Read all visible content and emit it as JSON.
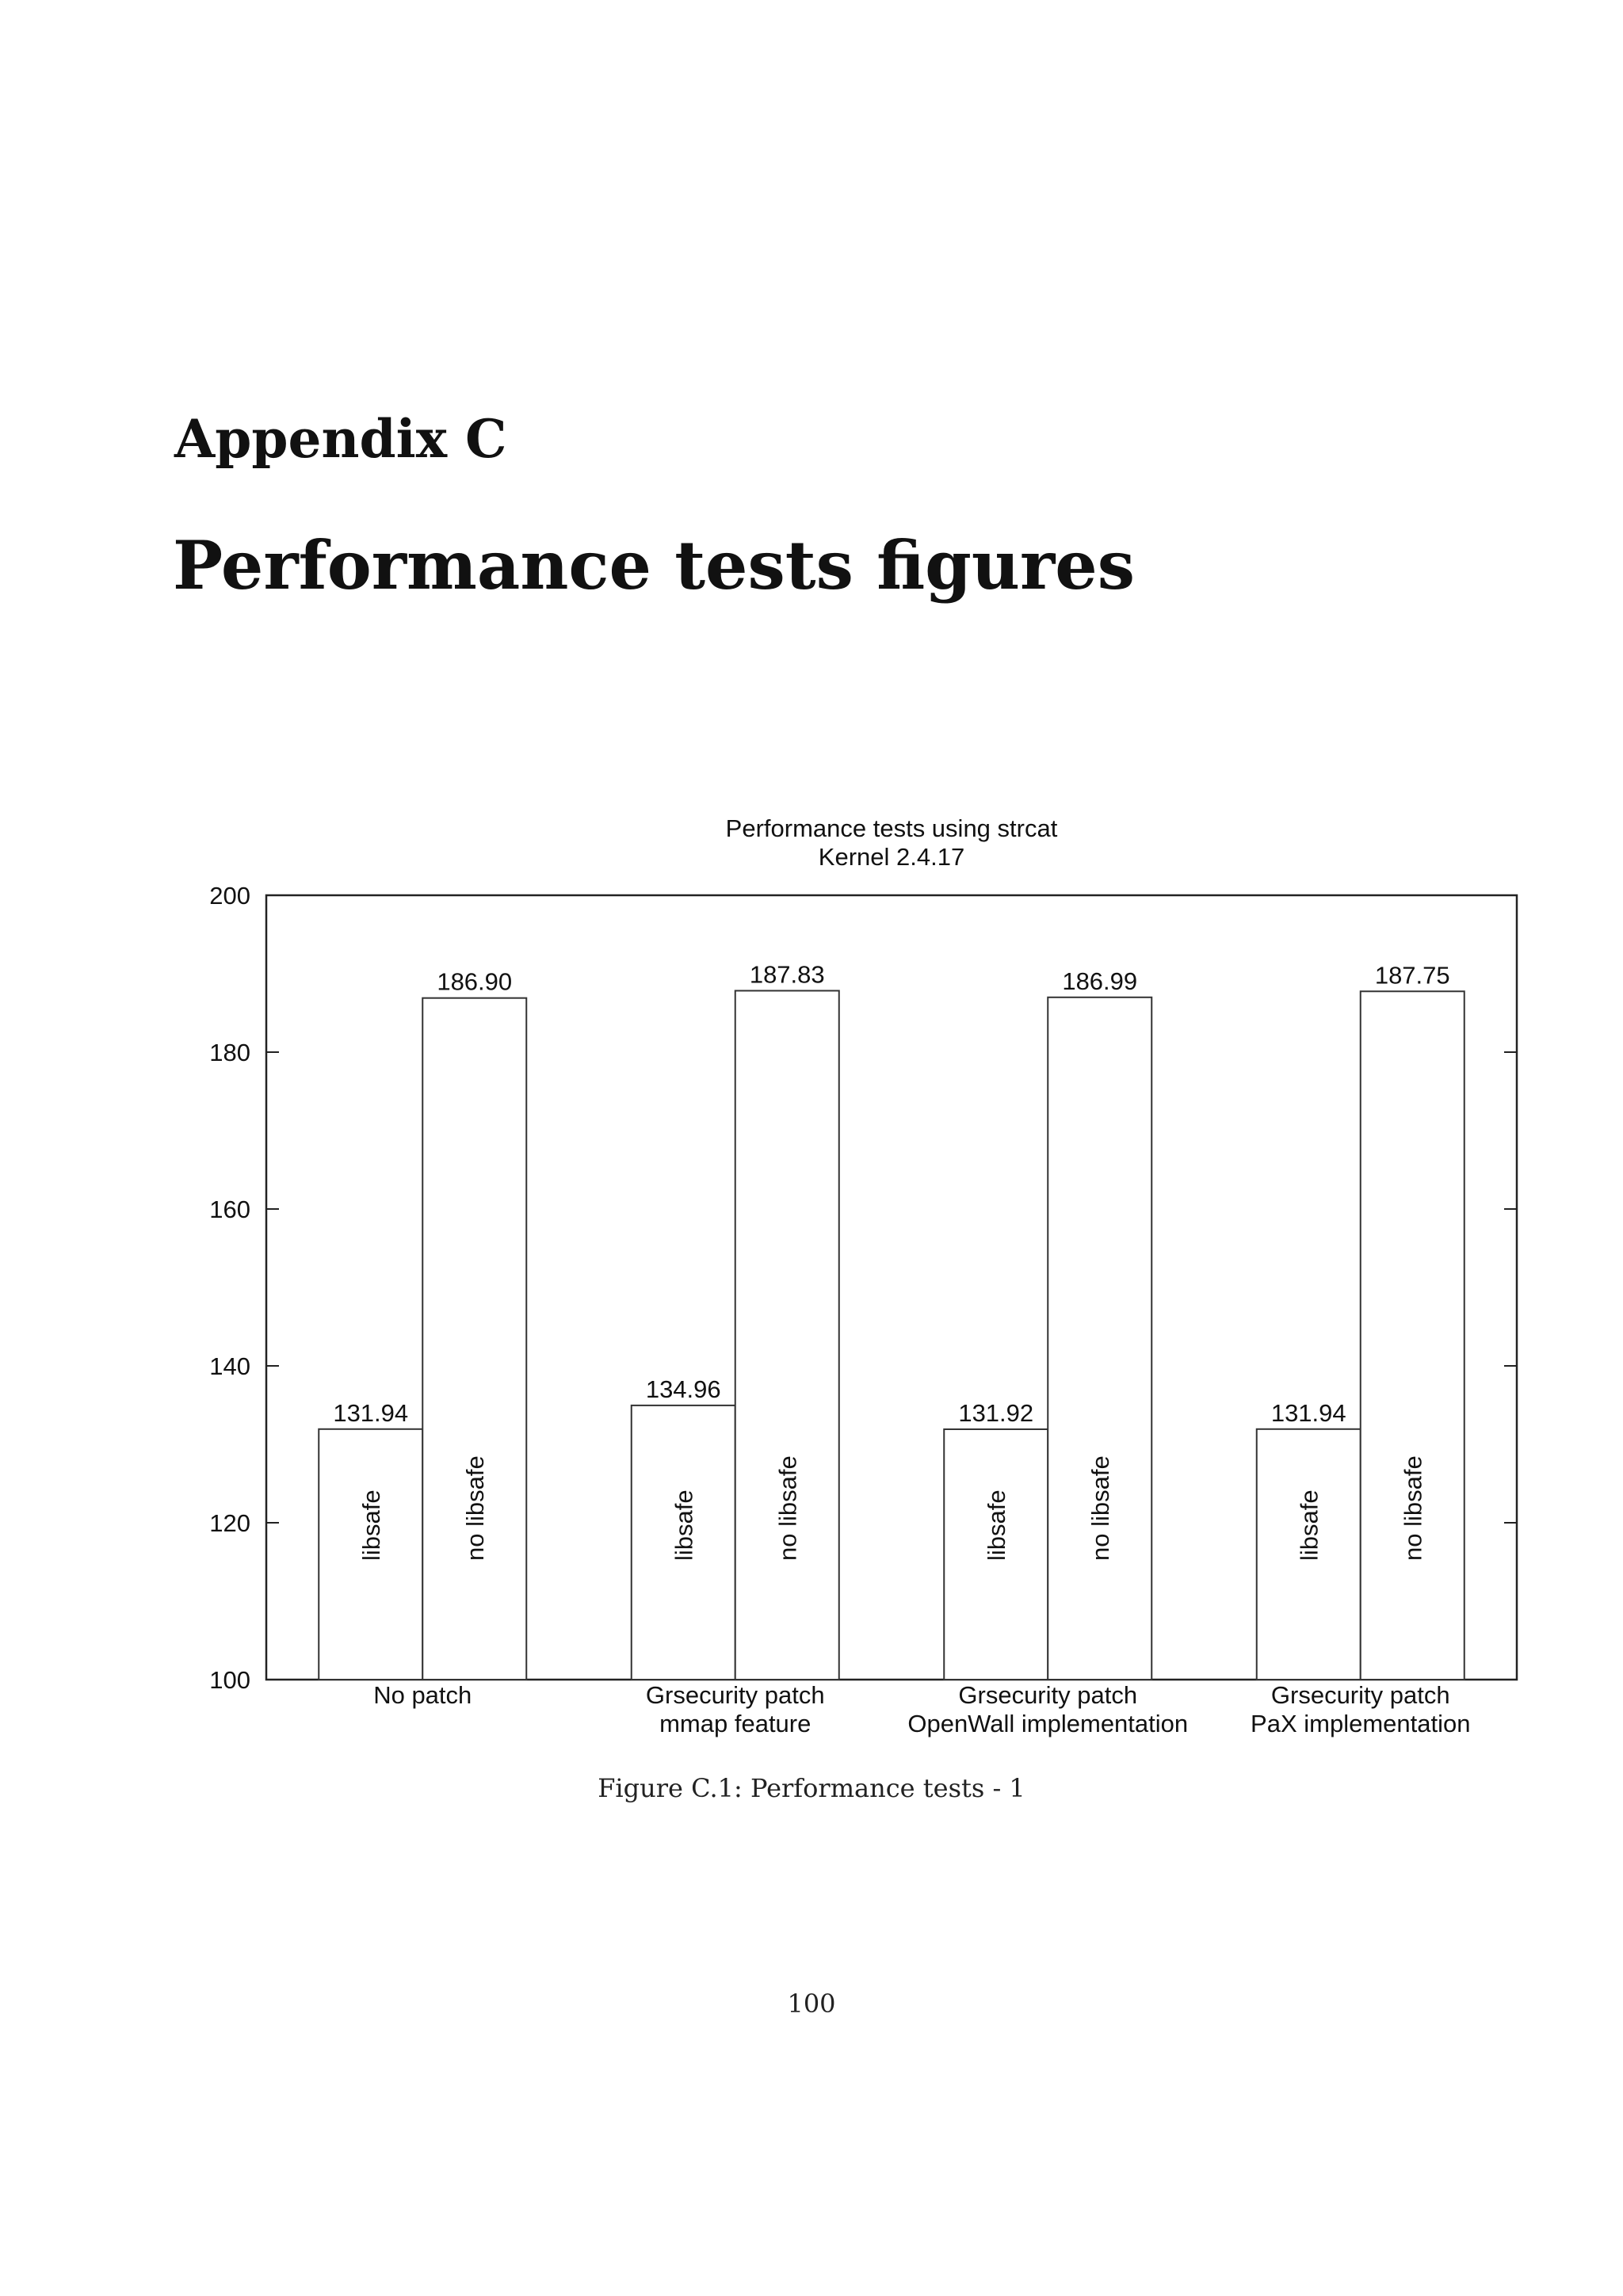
{
  "heading": {
    "appendix_label": "Appendix C",
    "title": "Performance tests figures"
  },
  "chart_data": {
    "type": "bar",
    "title": "Performance tests using strcat",
    "subtitle": "Kernel 2.4.17",
    "xlabel": "",
    "ylabel": "",
    "ylim": [
      100,
      200
    ],
    "yticks": [
      "100",
      "120",
      "140",
      "160",
      "180",
      "200"
    ],
    "grid": false,
    "categories": [
      [
        "No patch"
      ],
      [
        "Grsecurity patch",
        "mmap feature"
      ],
      [
        "Grsecurity patch",
        "OpenWall implementation"
      ],
      [
        "Grsecurity patch",
        "PaX implementation"
      ]
    ],
    "series": [
      {
        "name": "libsafe",
        "values": [
          131.94,
          134.96,
          131.92,
          131.94
        ],
        "labels": [
          "131.94",
          "134.96",
          "131.92",
          "131.94"
        ]
      },
      {
        "name": "no libsafe",
        "values": [
          186.9,
          187.83,
          186.99,
          187.75
        ],
        "labels": [
          "186.90",
          "187.83",
          "186.99",
          "187.75"
        ]
      }
    ]
  },
  "caption": "Figure C.1: Performance tests - 1",
  "page_number": "100"
}
